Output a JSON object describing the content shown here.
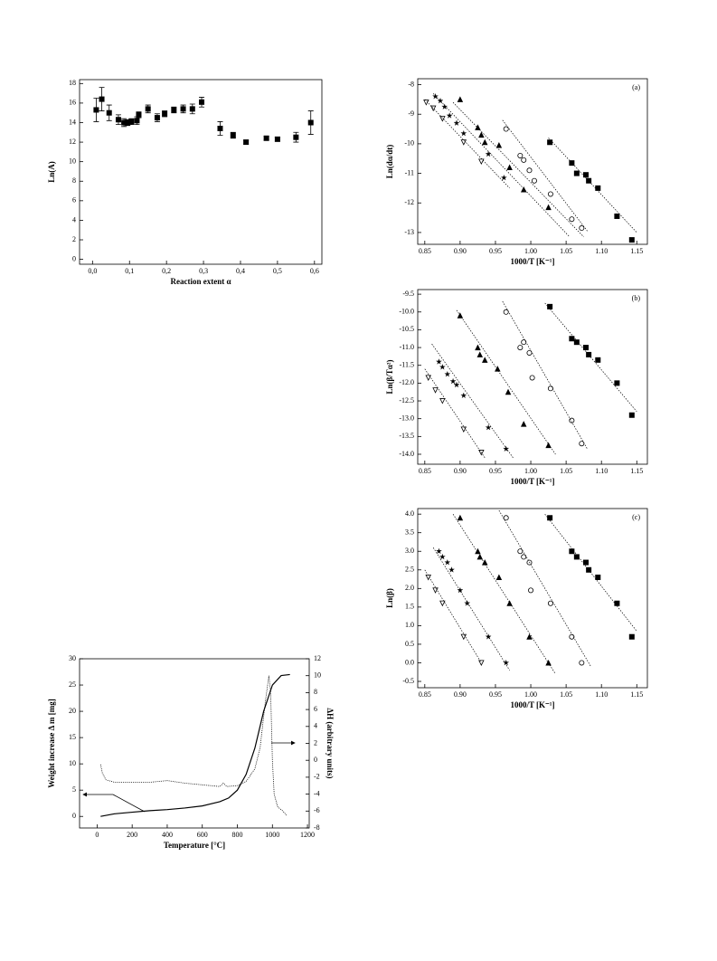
{
  "chart_data": [
    {
      "type": "scatter",
      "x_label": "Reaction extent α",
      "y_label": "Ln(A)",
      "xlim": [
        -0.035,
        0.62
      ],
      "ylim": [
        -0.5,
        18.4
      ],
      "xticks": [
        {
          "value": 0,
          "label": "0,0"
        },
        {
          "value": 0.1,
          "label": "0,1"
        },
        {
          "value": 0.2,
          "label": "0,2"
        },
        {
          "value": 0.3,
          "label": "0,3"
        },
        {
          "value": 0.4,
          "label": "0,4"
        },
        {
          "value": 0.5,
          "label": "0,5"
        },
        {
          "value": 0.6,
          "label": "0,6"
        }
      ],
      "yticks": [
        0,
        2,
        4,
        6,
        8,
        10,
        12,
        14,
        16,
        18
      ],
      "series": [
        {
          "marker": "square",
          "color": "#000000",
          "x": [
            0.01,
            0.025,
            0.045,
            0.07,
            0.085,
            0.095,
            0.105,
            0.12,
            0.125,
            0.15,
            0.175,
            0.195,
            0.22,
            0.245,
            0.27,
            0.295,
            0.345,
            0.38,
            0.415,
            0.47,
            0.5,
            0.55,
            0.59
          ],
          "values": [
            15.3,
            16.4,
            15.0,
            14.3,
            14.0,
            14.0,
            14.1,
            14.2,
            14.8,
            15.4,
            14.5,
            14.9,
            15.3,
            15.4,
            15.4,
            16.1,
            13.4,
            12.7,
            12.0,
            12.4,
            12.3,
            12.5,
            14.0
          ],
          "errors": [
            1.2,
            1.2,
            0.8,
            0.5,
            0.4,
            0.3,
            0.3,
            0.4,
            0.3,
            0.4,
            0.4,
            0.3,
            0.3,
            0.4,
            0.5,
            0.5,
            0.7,
            0.3,
            0.2,
            0.2,
            0.2,
            0.5,
            1.2
          ]
        }
      ]
    },
    {
      "type": "scatter",
      "label": "(a)",
      "x_label": "1000/T [K⁻¹]",
      "y_label": "Ln(dα/dt)",
      "xlim": [
        0.84,
        1.165
      ],
      "ylim": [
        -13.4,
        -7.8
      ],
      "xticks": [
        {
          "value": 0.85,
          "label": "0.85"
        },
        {
          "value": 0.9,
          "label": "0.90"
        },
        {
          "value": 0.95,
          "label": "0.95"
        },
        {
          "value": 1.0,
          "label": "1.00"
        },
        {
          "value": 1.05,
          "label": "1.05"
        },
        {
          "value": 1.1,
          "label": "1.10"
        },
        {
          "value": 1.15,
          "label": "1.15"
        }
      ],
      "yticks": [
        -13,
        -12,
        -11,
        -10,
        -9,
        -8
      ],
      "series": [
        {
          "marker": "square",
          "color": "#000000",
          "x": [
            1.027,
            1.058,
            1.065,
            1.078,
            1.082,
            1.095,
            1.122,
            1.143
          ],
          "values": [
            -9.95,
            -10.65,
            -11.0,
            -11.05,
            -11.25,
            -11.5,
            -12.45,
            -13.25
          ],
          "fit_x": [
            1.025,
            1.15
          ],
          "fit_y": [
            -9.8,
            -13.0
          ]
        },
        {
          "marker": "circle",
          "color": "#000000",
          "x": [
            0.965,
            0.985,
            0.99,
            0.998,
            1.005,
            1.028,
            1.058,
            1.072
          ],
          "values": [
            -9.5,
            -10.4,
            -10.55,
            -10.9,
            -11.25,
            -11.7,
            -12.55,
            -12.85
          ],
          "fit_x": [
            0.96,
            1.08
          ],
          "fit_y": [
            -9.2,
            -12.95
          ]
        },
        {
          "marker": "triangle",
          "color": "#000000",
          "x": [
            0.9,
            0.925,
            0.93,
            0.935,
            0.955,
            0.97,
            0.99,
            1.025
          ],
          "values": [
            -8.5,
            -9.45,
            -9.7,
            -9.95,
            -10.05,
            -10.8,
            -11.55,
            -12.15
          ],
          "fit_x": [
            0.89,
            1.075
          ],
          "fit_y": [
            -8.6,
            -13.15
          ]
        },
        {
          "marker": "star",
          "color": "#000000",
          "x": [
            0.865,
            0.872,
            0.878,
            0.885,
            0.895,
            0.905,
            0.94,
            0.962
          ],
          "values": [
            -8.4,
            -8.55,
            -8.75,
            -9.05,
            -9.3,
            -9.65,
            -10.35,
            -11.15
          ],
          "fit_x": [
            0.862,
            1.055
          ],
          "fit_y": [
            -8.3,
            -13.15
          ]
        },
        {
          "marker": "triangle-down",
          "color": "#000000",
          "x": [
            0.852,
            0.862,
            0.875,
            0.905,
            0.93
          ],
          "values": [
            -8.6,
            -8.8,
            -9.15,
            -9.95,
            -10.6
          ],
          "fit_x": [
            0.85,
            0.97
          ],
          "fit_y": [
            -8.5,
            -11.5
          ]
        }
      ]
    },
    {
      "type": "scatter",
      "label": "(b)",
      "x_label": "1000/T [K⁻¹]",
      "y_label": "Ln(β/Tα²)",
      "xlim": [
        0.84,
        1.165
      ],
      "ylim": [
        -14.28,
        -9.37
      ],
      "xticks": [
        {
          "value": 0.85,
          "label": "0.85"
        },
        {
          "value": 0.9,
          "label": "0.90"
        },
        {
          "value": 0.95,
          "label": "0.95"
        },
        {
          "value": 1.0,
          "label": "1.00"
        },
        {
          "value": 1.05,
          "label": "1.05"
        },
        {
          "value": 1.1,
          "label": "1.10"
        },
        {
          "value": 1.15,
          "label": "1.15"
        }
      ],
      "yticks": [
        {
          "value": -14,
          "label": "-14.0"
        },
        -13.5,
        {
          "value": -13,
          "label": "-13.0"
        },
        -12.5,
        {
          "value": -12,
          "label": "-12.0"
        },
        -11.5,
        {
          "value": -11,
          "label": "-11.0"
        },
        -10.5,
        {
          "value": -10,
          "label": "-10.0"
        },
        -9.5
      ],
      "series": [
        {
          "marker": "square",
          "color": "#000000",
          "x": [
            1.027,
            1.058,
            1.065,
            1.078,
            1.082,
            1.095,
            1.122,
            1.143
          ],
          "values": [
            -9.85,
            -10.75,
            -10.85,
            -11.0,
            -11.2,
            -11.35,
            -12.0,
            -12.9
          ],
          "fit_x": [
            1.02,
            1.15
          ],
          "fit_y": [
            -9.75,
            -12.8
          ]
        },
        {
          "marker": "circle",
          "color": "#000000",
          "x": [
            0.965,
            0.985,
            0.99,
            0.998,
            1.002,
            1.028,
            1.058,
            1.072
          ],
          "values": [
            -10.0,
            -11.0,
            -10.85,
            -11.15,
            -11.85,
            -12.15,
            -13.05,
            -13.7
          ],
          "fit_x": [
            0.96,
            1.08
          ],
          "fit_y": [
            -9.7,
            -13.85
          ]
        },
        {
          "marker": "triangle",
          "color": "#000000",
          "x": [
            0.9,
            0.925,
            0.928,
            0.935,
            0.953,
            0.968,
            0.99,
            1.025
          ],
          "values": [
            -10.1,
            -11.0,
            -11.2,
            -11.35,
            -11.6,
            -12.25,
            -13.15,
            -13.75
          ],
          "fit_x": [
            0.895,
            1.035
          ],
          "fit_y": [
            -9.95,
            -14.0
          ]
        },
        {
          "marker": "star",
          "color": "#000000",
          "x": [
            0.87,
            0.875,
            0.882,
            0.89,
            0.895,
            0.905,
            0.94,
            0.965
          ],
          "values": [
            -11.4,
            -11.55,
            -11.75,
            -11.95,
            -12.05,
            -12.35,
            -13.25,
            -13.85
          ],
          "fit_x": [
            0.86,
            0.975
          ],
          "fit_y": [
            -10.9,
            -14.1
          ]
        },
        {
          "marker": "triangle-down",
          "color": "#000000",
          "x": [
            0.855,
            0.865,
            0.875,
            0.905,
            0.93
          ],
          "values": [
            -11.85,
            -12.2,
            -12.5,
            -13.3,
            -13.95
          ],
          "fit_x": [
            0.85,
            0.935
          ],
          "fit_y": [
            -11.6,
            -14.1
          ]
        }
      ]
    },
    {
      "type": "scatter",
      "label": "(c)",
      "x_label": "1000/T [K⁻¹]",
      "y_label": "Ln(β)",
      "xlim": [
        0.84,
        1.165
      ],
      "ylim": [
        -0.67,
        4.15
      ],
      "xticks": [
        {
          "value": 0.85,
          "label": "0.85"
        },
        {
          "value": 0.9,
          "label": "0.90"
        },
        {
          "value": 0.95,
          "label": "0.95"
        },
        {
          "value": 1.0,
          "label": "1.00"
        },
        {
          "value": 1.05,
          "label": "1.05"
        },
        {
          "value": 1.1,
          "label": "1.10"
        },
        {
          "value": 1.15,
          "label": "1.15"
        }
      ],
      "yticks": [
        -0.5,
        {
          "value": 0,
          "label": "0.0"
        },
        0.5,
        {
          "value": 1,
          "label": "1.0"
        },
        1.5,
        {
          "value": 2,
          "label": "2.0"
        },
        2.5,
        {
          "value": 3,
          "label": "3.0"
        },
        3.5,
        {
          "value": 4,
          "label": "4.0"
        }
      ],
      "series": [
        {
          "marker": "square",
          "color": "#000000",
          "x": [
            1.027,
            1.058,
            1.065,
            1.078,
            1.082,
            1.095,
            1.122,
            1.143
          ],
          "values": [
            3.9,
            3.0,
            2.85,
            2.7,
            2.5,
            2.3,
            1.6,
            0.7
          ],
          "fit_x": [
            1.02,
            1.15
          ],
          "fit_y": [
            4.0,
            0.85
          ]
        },
        {
          "marker": "circle",
          "color": "#000000",
          "x": [
            0.965,
            0.985,
            0.99,
            0.998,
            1.0,
            1.028,
            1.058,
            1.072
          ],
          "values": [
            3.9,
            3.0,
            2.85,
            2.7,
            1.95,
            1.6,
            0.7,
            0.0
          ],
          "fit_x": [
            0.955,
            1.085
          ],
          "fit_y": [
            4.1,
            -0.1
          ]
        },
        {
          "marker": "triangle",
          "color": "#000000",
          "x": [
            0.9,
            0.925,
            0.928,
            0.935,
            0.955,
            0.97,
            0.998,
            1.025
          ],
          "values": [
            3.9,
            3.0,
            2.85,
            2.7,
            2.3,
            1.6,
            0.7,
            0.0
          ],
          "fit_x": [
            0.89,
            1.035
          ],
          "fit_y": [
            4.0,
            -0.3
          ]
        },
        {
          "marker": "star",
          "color": "#000000",
          "x": [
            0.87,
            0.875,
            0.882,
            0.888,
            0.9,
            0.91,
            0.94,
            0.965
          ],
          "values": [
            3.0,
            2.85,
            2.7,
            2.5,
            1.95,
            1.6,
            0.7,
            0.0
          ],
          "fit_x": [
            0.862,
            0.97
          ],
          "fit_y": [
            3.1,
            -0.2
          ]
        },
        {
          "marker": "triangle-down",
          "color": "#000000",
          "x": [
            0.855,
            0.865,
            0.875,
            0.905,
            0.93
          ],
          "values": [
            2.3,
            1.95,
            1.6,
            0.7,
            0.0
          ],
          "fit_x": [
            0.85,
            0.93
          ],
          "fit_y": [
            2.5,
            0.0
          ]
        }
      ]
    },
    {
      "type": "line",
      "x_label": "Temperature [°C]",
      "y_label": "Weight increase Δ m [mg]",
      "y2_label": "ΔH (arbitrary units)",
      "xlim": [
        -100,
        1210
      ],
      "ylim": [
        -2.2,
        30
      ],
      "y2lim": [
        -8,
        12
      ],
      "xticks": [
        0,
        200,
        400,
        600,
        800,
        1000,
        1200
      ],
      "yticks": [
        0,
        5,
        10,
        15,
        20,
        25,
        30
      ],
      "y2ticks": [
        -8,
        -6,
        -4,
        -2,
        0,
        2,
        4,
        6,
        8,
        10,
        12
      ],
      "series": [
        {
          "dash": "solid",
          "color": "#000000",
          "x": [
            20,
            100,
            200,
            300,
            400,
            500,
            600,
            700,
            750,
            800,
            850,
            900,
            950,
            1000,
            1050,
            1100
          ],
          "values": [
            0,
            0.5,
            0.8,
            1.1,
            1.3,
            1.6,
            2.0,
            2.8,
            3.5,
            5.0,
            8.0,
            13.0,
            20.0,
            25.0,
            26.8,
            27.0
          ]
        },
        {
          "dash": "dotted",
          "color": "#000000",
          "axis": "y2",
          "x": [
            20,
            30,
            50,
            100,
            200,
            300,
            400,
            500,
            600,
            700,
            720,
            740,
            800,
            850,
            900,
            930,
            960,
            980,
            990,
            1000,
            1010,
            1030,
            1060,
            1080
          ],
          "values": [
            -0.5,
            -1.5,
            -2.3,
            -2.6,
            -2.6,
            -2.6,
            -2.4,
            -2.7,
            -2.9,
            -3.1,
            -2.7,
            -3.1,
            -3.0,
            -2.5,
            -1.0,
            1.5,
            7.0,
            10.0,
            8.0,
            0.0,
            -4.0,
            -5.5,
            -6.0,
            -6.5
          ]
        }
      ]
    }
  ]
}
